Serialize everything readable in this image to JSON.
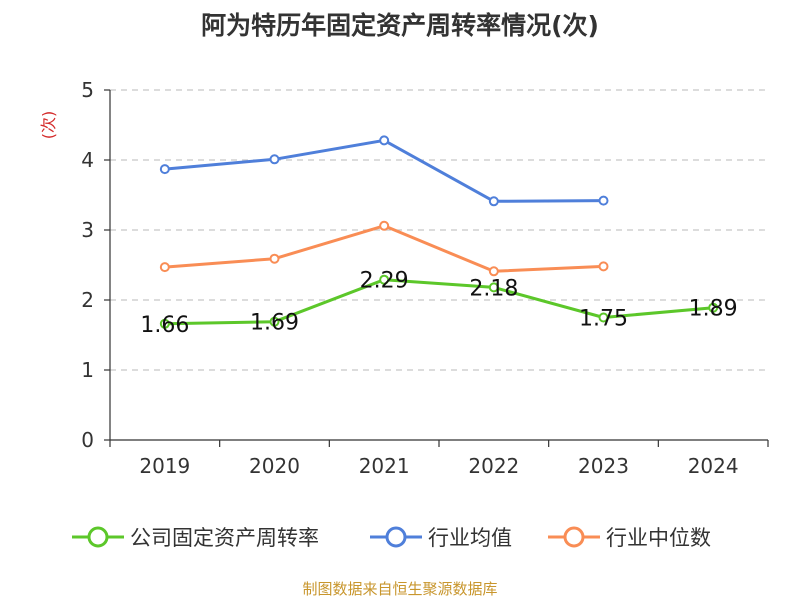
{
  "chart_data": {
    "type": "line",
    "title": "阿为特历年固定资产周转率情况(次)",
    "ylabel": "(次)",
    "xlabel": "",
    "categories": [
      "2019",
      "2020",
      "2021",
      "2022",
      "2023",
      "2024"
    ],
    "ylim": [
      0,
      5
    ],
    "yticks": [
      "0",
      "1",
      "2",
      "3",
      "4",
      "5"
    ],
    "grid": true,
    "legend_position": "bottom",
    "series": [
      {
        "name": "公司固定资产周转率",
        "color": "#5cc72a",
        "values": [
          1.66,
          1.69,
          2.29,
          2.18,
          1.75,
          1.89
        ],
        "labels": [
          "1.66",
          "1.69",
          "2.29",
          "2.18",
          "1.75",
          "1.89"
        ],
        "show_labels": true
      },
      {
        "name": "行业均值",
        "color": "#4f7fda",
        "values": [
          3.87,
          4.01,
          4.28,
          3.41,
          3.42,
          null
        ],
        "show_labels": false
      },
      {
        "name": "行业中位数",
        "color": "#f98d55",
        "values": [
          2.47,
          2.59,
          3.06,
          2.41,
          2.48,
          null
        ],
        "show_labels": false
      }
    ],
    "source": "制图数据来自恒生聚源数据库"
  }
}
